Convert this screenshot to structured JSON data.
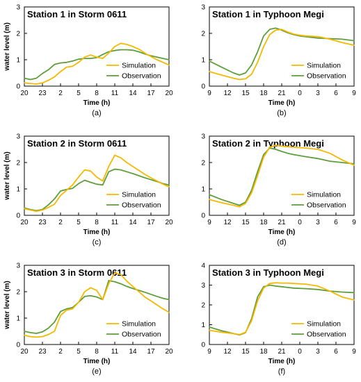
{
  "colors": {
    "simulation": "#F5B800",
    "observation": "#5E9E3A",
    "axis": "#000000"
  },
  "chart_data": [
    {
      "type": "line",
      "caption": "(a)",
      "title": "Station 1 in Storm 0611",
      "xlabel": "Time (h)",
      "ylabel": "water level (m)",
      "xticks": [
        "20",
        "23",
        "2",
        "5",
        "8",
        "11",
        "14",
        "17",
        "20"
      ],
      "ylim": [
        0,
        3
      ],
      "yticks": [
        "0",
        "1",
        "2",
        "3"
      ],
      "legend": "bottom-right",
      "series": [
        {
          "name": "Simulation",
          "x": [
            0,
            2,
            3,
            4,
            5,
            6,
            7,
            8,
            9,
            10,
            11,
            12,
            13,
            14,
            15,
            16,
            17,
            18,
            19,
            20,
            21,
            22,
            23,
            24
          ],
          "y": [
            0.12,
            0.08,
            0.12,
            0.22,
            0.35,
            0.55,
            0.72,
            0.75,
            0.9,
            1.1,
            1.18,
            1.1,
            1.05,
            1.25,
            1.5,
            1.62,
            1.58,
            1.5,
            1.4,
            1.25,
            1.12,
            1.0,
            0.9,
            0.8
          ]
        },
        {
          "name": "Observation",
          "x": [
            0,
            1,
            2,
            3,
            4,
            5,
            6,
            7,
            8,
            9,
            10,
            11,
            12,
            13,
            14,
            15,
            16,
            17,
            18,
            19,
            20,
            21,
            22,
            23,
            24
          ],
          "y": [
            0.3,
            0.25,
            0.3,
            0.48,
            0.62,
            0.82,
            0.88,
            0.9,
            0.95,
            1.02,
            1.05,
            1.05,
            1.08,
            1.2,
            1.3,
            1.35,
            1.38,
            1.38,
            1.36,
            1.3,
            1.22,
            1.15,
            1.1,
            1.05,
            1.0
          ]
        }
      ]
    },
    {
      "type": "line",
      "caption": "(b)",
      "title": "Station 1 in Typhoon Megi",
      "xlabel": "Time (h)",
      "ylabel": "",
      "xticks": [
        "9",
        "12",
        "15",
        "18",
        "21",
        "0",
        "3",
        "6",
        "9"
      ],
      "ylim": [
        0,
        3
      ],
      "yticks": [
        "0",
        "1",
        "2",
        "3"
      ],
      "legend": "bottom-right",
      "series": [
        {
          "name": "Simulation",
          "x": [
            0,
            2,
            4,
            5,
            6,
            7,
            8,
            9,
            10,
            11,
            12,
            13,
            14,
            15,
            16,
            18,
            20,
            22,
            24
          ],
          "y": [
            0.55,
            0.42,
            0.3,
            0.25,
            0.28,
            0.45,
            0.9,
            1.5,
            1.95,
            2.12,
            2.15,
            2.05,
            1.97,
            1.93,
            1.9,
            1.88,
            1.78,
            1.65,
            1.55
          ]
        },
        {
          "name": "Observation",
          "x": [
            0,
            2,
            4,
            5,
            6,
            7,
            8,
            9,
            10,
            11,
            12,
            13,
            14,
            15,
            16,
            18,
            20,
            22,
            24
          ],
          "y": [
            0.95,
            0.72,
            0.5,
            0.42,
            0.5,
            0.8,
            1.3,
            1.9,
            2.15,
            2.2,
            2.12,
            2.02,
            1.95,
            1.9,
            1.87,
            1.82,
            1.8,
            1.78,
            1.72
          ]
        }
      ]
    },
    {
      "type": "line",
      "caption": "(c)",
      "title": "Station 2 in Storm 0611",
      "xlabel": "Time (h)",
      "ylabel": "water level (m)",
      "xticks": [
        "20",
        "23",
        "2",
        "5",
        "8",
        "11",
        "14",
        "17",
        "20"
      ],
      "ylim": [
        0,
        3
      ],
      "yticks": [
        "0",
        "1",
        "2",
        "3"
      ],
      "legend": "bottom-right",
      "series": [
        {
          "name": "Simulation",
          "x": [
            0,
            1,
            2,
            3,
            4,
            5,
            6,
            7,
            8,
            9,
            10,
            11,
            12,
            13,
            14,
            15,
            16,
            17,
            18,
            19,
            20,
            21,
            22,
            23,
            24
          ],
          "y": [
            0.25,
            0.2,
            0.15,
            0.2,
            0.3,
            0.42,
            0.75,
            0.95,
            1.15,
            1.45,
            1.72,
            1.68,
            1.45,
            1.3,
            1.85,
            2.28,
            2.18,
            2.0,
            1.85,
            1.7,
            1.55,
            1.42,
            1.3,
            1.18,
            1.08
          ]
        },
        {
          "name": "Observation",
          "x": [
            0,
            1,
            2,
            3,
            4,
            5,
            6,
            7,
            8,
            9,
            10,
            11,
            12,
            13,
            14,
            15,
            16,
            17,
            18,
            19,
            20,
            21,
            22,
            23,
            24
          ],
          "y": [
            0.28,
            0.22,
            0.18,
            0.22,
            0.4,
            0.62,
            0.92,
            0.98,
            1.02,
            1.2,
            1.33,
            1.25,
            1.18,
            1.15,
            1.65,
            1.75,
            1.72,
            1.65,
            1.58,
            1.5,
            1.42,
            1.35,
            1.28,
            1.2,
            1.15
          ]
        }
      ]
    },
    {
      "type": "line",
      "caption": "(d)",
      "title": "Station 2 in Typhoon Megi",
      "xlabel": "Time (h)",
      "ylabel": "",
      "xticks": [
        "9",
        "12",
        "15",
        "18",
        "21",
        "0",
        "3",
        "6",
        "9"
      ],
      "ylim": [
        0,
        3
      ],
      "yticks": [
        "0",
        "1",
        "2",
        "3"
      ],
      "legend": "bottom-right",
      "series": [
        {
          "name": "Simulation",
          "x": [
            0,
            2,
            4,
            5,
            6,
            7,
            8,
            9,
            10,
            11,
            12,
            13,
            14,
            16,
            18,
            20,
            22,
            24
          ],
          "y": [
            0.6,
            0.48,
            0.38,
            0.32,
            0.45,
            0.85,
            1.5,
            2.2,
            2.58,
            2.65,
            2.62,
            2.6,
            2.58,
            2.55,
            2.5,
            2.35,
            2.1,
            1.9
          ]
        },
        {
          "name": "Observation",
          "x": [
            0,
            2,
            4,
            5,
            6,
            7,
            8,
            9,
            10,
            11,
            12,
            13,
            14,
            16,
            18,
            20,
            22,
            24
          ],
          "y": [
            0.78,
            0.6,
            0.45,
            0.38,
            0.5,
            0.95,
            1.65,
            2.3,
            2.55,
            2.5,
            2.42,
            2.35,
            2.3,
            2.22,
            2.15,
            2.05,
            2.0,
            1.95
          ]
        }
      ]
    },
    {
      "type": "line",
      "caption": "(e)",
      "title": "Station 3 in Storm 0611",
      "xlabel": "Time (h)",
      "ylabel": "water level (m)",
      "xticks": [
        "20",
        "23",
        "2",
        "5",
        "8",
        "11",
        "14",
        "17",
        "20"
      ],
      "ylim": [
        0,
        3
      ],
      "yticks": [
        "0",
        "1",
        "2",
        "3"
      ],
      "legend": "bottom-right",
      "series": [
        {
          "name": "Simulation",
          "x": [
            0,
            1,
            2,
            3,
            4,
            5,
            6,
            7,
            8,
            9,
            10,
            11,
            12,
            13,
            14,
            15,
            16,
            17,
            18,
            19,
            20,
            21,
            22,
            23,
            24
          ],
          "y": [
            0.35,
            0.3,
            0.28,
            0.3,
            0.38,
            0.5,
            1.1,
            1.3,
            1.35,
            1.6,
            2.0,
            2.15,
            2.05,
            1.7,
            2.3,
            2.72,
            2.65,
            2.4,
            2.2,
            2.0,
            1.8,
            1.65,
            1.5,
            1.35,
            1.22
          ]
        },
        {
          "name": "Observation",
          "x": [
            0,
            1,
            2,
            3,
            4,
            5,
            6,
            7,
            8,
            9,
            10,
            11,
            12,
            13,
            14,
            15,
            16,
            17,
            18,
            19,
            20,
            21,
            22,
            23,
            24
          ],
          "y": [
            0.5,
            0.45,
            0.42,
            0.48,
            0.62,
            0.85,
            1.25,
            1.35,
            1.4,
            1.6,
            1.82,
            1.85,
            1.8,
            1.7,
            2.42,
            2.38,
            2.3,
            2.2,
            2.12,
            2.05,
            1.98,
            1.9,
            1.82,
            1.75,
            1.7
          ]
        }
      ]
    },
    {
      "type": "line",
      "caption": "(f)",
      "title": "Station 3 in Typhoon Megi",
      "xlabel": "Time (h)",
      "ylabel": "",
      "xticks": [
        "9",
        "12",
        "15",
        "18",
        "21",
        "0",
        "3",
        "6",
        "9"
      ],
      "ylim": [
        0,
        4
      ],
      "yticks": [
        "0",
        "1",
        "2",
        "3",
        "4"
      ],
      "legend": "bottom-right",
      "series": [
        {
          "name": "Simulation",
          "x": [
            0,
            2,
            4,
            5,
            6,
            7,
            8,
            9,
            10,
            11,
            12,
            13,
            14,
            16,
            18,
            20,
            22,
            24
          ],
          "y": [
            0.72,
            0.62,
            0.55,
            0.5,
            0.62,
            1.2,
            2.2,
            2.85,
            3.08,
            3.12,
            3.1,
            3.1,
            3.08,
            3.05,
            2.95,
            2.7,
            2.4,
            2.25
          ]
        },
        {
          "name": "Observation",
          "x": [
            0,
            2,
            4,
            5,
            6,
            7,
            8,
            9,
            10,
            11,
            12,
            13,
            14,
            16,
            18,
            20,
            22,
            24
          ],
          "y": [
            0.88,
            0.7,
            0.55,
            0.48,
            0.6,
            1.3,
            2.4,
            2.92,
            3.0,
            2.95,
            2.92,
            2.88,
            2.85,
            2.82,
            2.78,
            2.7,
            2.65,
            2.62
          ]
        }
      ]
    }
  ]
}
